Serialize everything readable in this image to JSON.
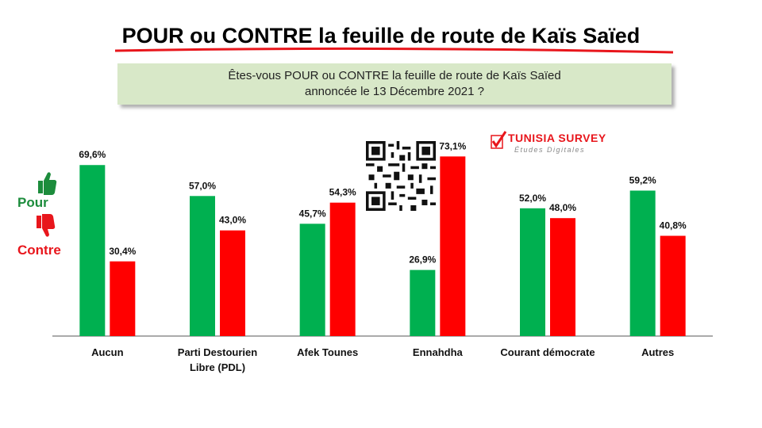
{
  "title": "POUR ou CONTRE la feuille de route de Kaïs Saïed",
  "question": {
    "line1": "Êtes-vous POUR ou CONTRE la feuille de route de Kaïs Saïed",
    "line2": "annoncée le 13 Décembre 2021 ?"
  },
  "legend": {
    "pour": "Pour",
    "contre": "Contre"
  },
  "logo": {
    "name": "TUNISIA SURVEY",
    "tagline": "Études Digitales"
  },
  "colors": {
    "pour": "#00b050",
    "contre": "#ff0000",
    "underline": "#e8161c"
  },
  "icons": {
    "pour": "thumbs-up-icon",
    "contre": "thumbs-down-icon",
    "qr": "qr-code-icon"
  },
  "chart_data": {
    "type": "bar",
    "categories": [
      "Aucun",
      "Parti Destourien Libre (PDL)",
      "Afek Tounes",
      "Ennahdha",
      "Courant démocrate",
      "Autres"
    ],
    "category_lines": [
      [
        "Aucun"
      ],
      [
        "Parti Destourien",
        "Libre (PDL)"
      ],
      [
        "Afek Tounes"
      ],
      [
        "Ennahdha"
      ],
      [
        "Courant démocrate"
      ],
      [
        "Autres"
      ]
    ],
    "series": [
      {
        "name": "Pour",
        "values": [
          69.6,
          57.0,
          45.7,
          26.9,
          52.0,
          59.2
        ],
        "labels": [
          "69,6%",
          "57,0%",
          "45,7%",
          "26,9%",
          "52,0%",
          "59,2%"
        ]
      },
      {
        "name": "Contre",
        "values": [
          30.4,
          43.0,
          54.3,
          73.1,
          48.0,
          40.8
        ],
        "labels": [
          "30,4%",
          "43,0%",
          "54,3%",
          "73,1%",
          "48,0%",
          "40,8%"
        ]
      }
    ],
    "ylim": [
      0,
      100
    ],
    "grid": false,
    "legend_position": "left"
  }
}
